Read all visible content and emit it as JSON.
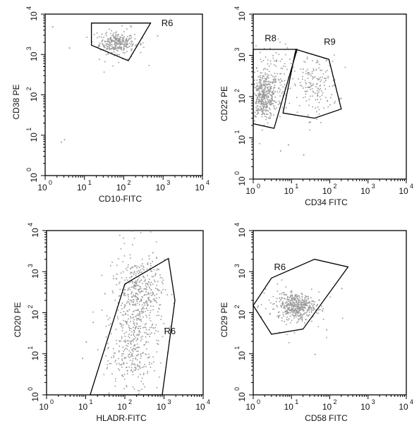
{
  "chart_data": [
    {
      "type": "scatter",
      "xlabel": "CD10-FITC",
      "ylabel": "CD38 PE",
      "xscale": "log",
      "yscale": "log",
      "xlim": [
        1,
        10000
      ],
      "ylim": [
        1,
        10000
      ],
      "xticks": [
        {
          "base": "10",
          "exp": "0"
        },
        {
          "base": "10",
          "exp": "1"
        },
        {
          "base": "10",
          "exp": "2"
        },
        {
          "base": "10",
          "exp": "3"
        },
        {
          "base": "10",
          "exp": "4"
        }
      ],
      "yticks": [
        {
          "base": "10",
          "exp": "0"
        },
        {
          "base": "10",
          "exp": "1"
        },
        {
          "base": "10",
          "exp": "2"
        },
        {
          "base": "10",
          "exp": "3"
        },
        {
          "base": "10",
          "exp": "4"
        }
      ],
      "gates": [
        {
          "label": "R6",
          "points": [
            [
              15,
              6000
            ],
            [
              480,
              6000
            ],
            [
              130,
              700
            ],
            [
              15,
              1700
            ]
          ],
          "label_at": [
            900,
            5000
          ]
        }
      ],
      "clusters": [
        {
          "center": [
            65,
            2000
          ],
          "spread": [
            0.22,
            0.12
          ],
          "count": 260
        },
        {
          "center": [
            70,
            1800
          ],
          "spread": [
            0.35,
            0.2
          ],
          "count": 60
        }
      ],
      "outliers": [
        [
          2.5,
          7
        ],
        [
          3,
          8
        ],
        [
          1.5,
          5000
        ],
        [
          4,
          1500
        ],
        [
          700,
          3000
        ]
      ]
    },
    {
      "type": "scatter",
      "xlabel": "CD34 FITC",
      "ylabel": "CD22 PE",
      "xscale": "log",
      "yscale": "log",
      "xlim": [
        1,
        10000
      ],
      "ylim": [
        1,
        10000
      ],
      "xticks": [
        {
          "base": "10",
          "exp": "0"
        },
        {
          "base": "10",
          "exp": "1"
        },
        {
          "base": "10",
          "exp": "2"
        },
        {
          "base": "10",
          "exp": "3"
        },
        {
          "base": "10",
          "exp": "4"
        }
      ],
      "yticks": [
        {
          "base": "10",
          "exp": "0"
        },
        {
          "base": "10",
          "exp": "1"
        },
        {
          "base": "10",
          "exp": "2"
        },
        {
          "base": "10",
          "exp": "3"
        },
        {
          "base": "10",
          "exp": "4"
        }
      ],
      "gates": [
        {
          "label": "R8",
          "points": [
            [
              1,
              1400
            ],
            [
              14,
              1400
            ],
            [
              3.5,
              17
            ],
            [
              1,
              22
            ]
          ],
          "label_at": [
            2,
            2200
          ]
        },
        {
          "label": "R9",
          "points": [
            [
              13,
              1400
            ],
            [
              95,
              800
            ],
            [
              200,
              50
            ],
            [
              40,
              30
            ],
            [
              6,
              40
            ]
          ],
          "label_at": [
            70,
            1800
          ]
        }
      ],
      "clusters": [
        {
          "center": [
            1.8,
            100
          ],
          "spread": [
            0.18,
            0.28
          ],
          "count": 420
        },
        {
          "center": [
            3,
            300
          ],
          "spread": [
            0.25,
            0.4
          ],
          "count": 120
        },
        {
          "center": [
            40,
            200
          ],
          "spread": [
            0.3,
            0.35
          ],
          "count": 170
        }
      ],
      "outliers": [
        [
          5,
          5
        ],
        [
          8,
          7
        ],
        [
          20,
          4
        ],
        [
          30,
          25
        ]
      ]
    },
    {
      "type": "scatter",
      "xlabel": "HLADR-FITC",
      "ylabel": "CD20 PE",
      "xscale": "log",
      "yscale": "log",
      "xlim": [
        1,
        10000
      ],
      "ylim": [
        1,
        10000
      ],
      "xticks": [
        {
          "base": "10",
          "exp": "0"
        },
        {
          "base": "10",
          "exp": "1"
        },
        {
          "base": "10",
          "exp": "2"
        },
        {
          "base": "10",
          "exp": "3"
        },
        {
          "base": "10",
          "exp": "4"
        }
      ],
      "yticks": [
        {
          "base": "10",
          "exp": "0"
        },
        {
          "base": "10",
          "exp": "1"
        },
        {
          "base": "10",
          "exp": "2"
        },
        {
          "base": "10",
          "exp": "3"
        },
        {
          "base": "10",
          "exp": "4"
        }
      ],
      "gates": [
        {
          "label": "R6",
          "points": [
            [
              13,
              1
            ],
            [
              900,
              1
            ],
            [
              1900,
              200
            ],
            [
              1300,
              2100
            ],
            [
              100,
              500
            ]
          ],
          "label_at": [
            1000,
            30
          ]
        }
      ],
      "clusters": [
        {
          "center": [
            200,
            80
          ],
          "spread": [
            0.3,
            0.8
          ],
          "count": 480
        },
        {
          "center": [
            250,
            400
          ],
          "spread": [
            0.3,
            0.35
          ],
          "count": 150
        },
        {
          "center": [
            120,
            8
          ],
          "spread": [
            0.3,
            0.4
          ],
          "count": 120
        }
      ],
      "outliers": [
        [
          10,
          20
        ],
        [
          8,
          8
        ],
        [
          50,
          700
        ],
        [
          60,
          900
        ],
        [
          400,
          2500
        ],
        [
          500,
          3000
        ],
        [
          30,
          300
        ],
        [
          15,
          60
        ]
      ]
    },
    {
      "type": "scatter",
      "xlabel": "CD58 FITC",
      "ylabel": "CD29 PE",
      "xscale": "log",
      "yscale": "log",
      "xlim": [
        1,
        10000
      ],
      "ylim": [
        1,
        10000
      ],
      "xticks": [
        {
          "base": "10",
          "exp": "0"
        },
        {
          "base": "10",
          "exp": "1"
        },
        {
          "base": "10",
          "exp": "2"
        },
        {
          "base": "10",
          "exp": "3"
        },
        {
          "base": "10",
          "exp": "4"
        }
      ],
      "yticks": [
        {
          "base": "10",
          "exp": "0"
        },
        {
          "base": "10",
          "exp": "1"
        },
        {
          "base": "10",
          "exp": "2"
        },
        {
          "base": "10",
          "exp": "3"
        },
        {
          "base": "10",
          "exp": "4"
        }
      ],
      "gates": [
        {
          "label": "R6",
          "points": [
            [
              3,
              700
            ],
            [
              40,
              2000
            ],
            [
              300,
              1300
            ],
            [
              20,
              40
            ],
            [
              3,
              30
            ],
            [
              1,
              150
            ]
          ],
          "label_at": [
            3.5,
            1100
          ]
        }
      ],
      "clusters": [
        {
          "center": [
            13,
            150
          ],
          "spread": [
            0.25,
            0.15
          ],
          "count": 380
        },
        {
          "center": [
            10,
            150
          ],
          "spread": [
            0.4,
            0.3
          ],
          "count": 100
        }
      ],
      "outliers": [
        [
          1.3,
          150
        ],
        [
          80,
          40
        ],
        [
          40,
          10
        ],
        [
          200,
          400
        ]
      ]
    }
  ]
}
